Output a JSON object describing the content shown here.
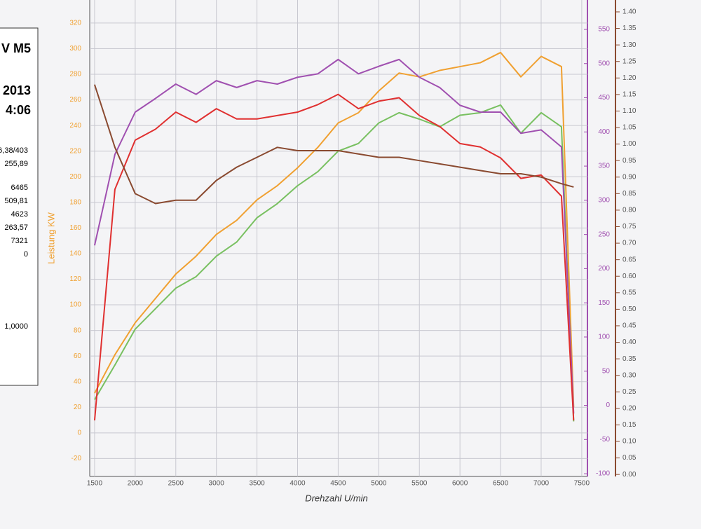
{
  "panel": {
    "lines": [
      "V M5",
      "2013",
      "4:06",
      "6,38/403",
      "255,89",
      "6465",
      "509,81",
      "4623",
      "263,57",
      "7321",
      "0",
      "1,0000"
    ]
  },
  "chart_data": {
    "type": "line",
    "xlabel": "Drehzahl U/min",
    "ylabel": "Leistung KW",
    "x": [
      1500,
      1750,
      2000,
      2250,
      2500,
      2750,
      3000,
      3250,
      3500,
      3750,
      4000,
      4250,
      4500,
      4750,
      5000,
      5250,
      5500,
      5750,
      6000,
      6250,
      6500,
      6750,
      7000,
      7250,
      7400
    ],
    "xlim": [
      1440,
      7570
    ],
    "xticks": [
      1500,
      2000,
      2500,
      3000,
      3500,
      4000,
      4500,
      5000,
      5500,
      6000,
      6500,
      7000,
      7500
    ],
    "ylim": [
      -34,
      338
    ],
    "yticks": [
      -20,
      0,
      20,
      40,
      60,
      80,
      100,
      120,
      140,
      160,
      180,
      200,
      220,
      240,
      260,
      280,
      300,
      320
    ],
    "y2lim": [
      -104,
      593
    ],
    "y2ticks": [
      -100,
      -50,
      0,
      50,
      100,
      150,
      200,
      250,
      300,
      350,
      400,
      450,
      500,
      550
    ],
    "y3lim": [
      -0.006,
      1.436
    ],
    "y3ticks": [
      {
        "value": 0,
        "label": "0.00"
      },
      {
        "value": 0.05,
        "label": "0.05"
      },
      {
        "value": 0.1,
        "label": "0.10"
      },
      {
        "value": 0.15,
        "label": "0.15"
      },
      {
        "value": 0.2,
        "label": "0.20"
      },
      {
        "value": 0.25,
        "label": "0.25"
      },
      {
        "value": 0.3,
        "label": "0.30"
      },
      {
        "value": 0.35,
        "label": "0.35"
      },
      {
        "value": 0.4,
        "label": "0.40"
      },
      {
        "value": 0.45,
        "label": "0.45"
      },
      {
        "value": 0.5,
        "label": "0.50"
      },
      {
        "value": 0.55,
        "label": "0.55"
      },
      {
        "value": 0.6,
        "label": "0.60"
      },
      {
        "value": 0.65,
        "label": "0.65"
      },
      {
        "value": 0.7,
        "label": "0.70"
      },
      {
        "value": 0.75,
        "label": "0.75"
      },
      {
        "value": 0.8,
        "label": "0.80"
      },
      {
        "value": 0.85,
        "label": "0.85"
      },
      {
        "value": 0.9,
        "label": "0.90"
      },
      {
        "value": 0.95,
        "label": "0.95"
      },
      {
        "value": 1,
        "label": "1.00"
      },
      {
        "value": 1.05,
        "label": "1.05"
      },
      {
        "value": 1.1,
        "label": "1.10"
      },
      {
        "value": 1.15,
        "label": "1.15"
      },
      {
        "value": 1.2,
        "label": "1.20"
      },
      {
        "value": 1.25,
        "label": "1.25"
      },
      {
        "value": 1.3,
        "label": "1.30"
      },
      {
        "value": 1.35,
        "label": "1.35"
      },
      {
        "value": 1.4,
        "label": "1.40"
      }
    ],
    "grid": true,
    "series": [
      {
        "color": "#f0a030",
        "axis": "y",
        "values": [
          31,
          61,
          86,
          105,
          124,
          138,
          155,
          166,
          182,
          193,
          207,
          223,
          242,
          250,
          267,
          281,
          278,
          283,
          286,
          289,
          297,
          278,
          294,
          286,
          20
        ]
      },
      {
        "color": "#78c060",
        "axis": "y",
        "values": [
          26,
          53,
          81,
          97,
          113,
          122,
          138,
          149,
          168,
          179,
          193,
          204,
          220,
          226,
          242,
          250,
          245,
          239,
          248,
          250,
          256,
          234,
          250,
          239,
          9
        ]
      },
      {
        "color": "#a050b0",
        "axis": "y2",
        "values": [
          234,
          367,
          429,
          449,
          470,
          455,
          475,
          465,
          475,
          470,
          480,
          485,
          506,
          485,
          496,
          506,
          480,
          465,
          439,
          429,
          429,
          398,
          403,
          378,
          -12
        ]
      },
      {
        "color": "#e03030",
        "axis": "y2",
        "values": [
          -22,
          316,
          388,
          404,
          429,
          414,
          434,
          419,
          419,
          424,
          429,
          440,
          455,
          434,
          445,
          450,
          424,
          408,
          383,
          378,
          362,
          332,
          337,
          306,
          -22
        ]
      },
      {
        "color": "#8a4a30",
        "axis": "y3",
        "values": [
          1.18,
          0.99,
          0.85,
          0.82,
          0.83,
          0.83,
          0.89,
          0.93,
          0.96,
          0.99,
          0.98,
          0.98,
          0.98,
          0.97,
          0.96,
          0.96,
          0.95,
          0.94,
          0.93,
          0.92,
          0.91,
          0.91,
          0.9,
          0.88,
          0.87
        ]
      }
    ]
  }
}
